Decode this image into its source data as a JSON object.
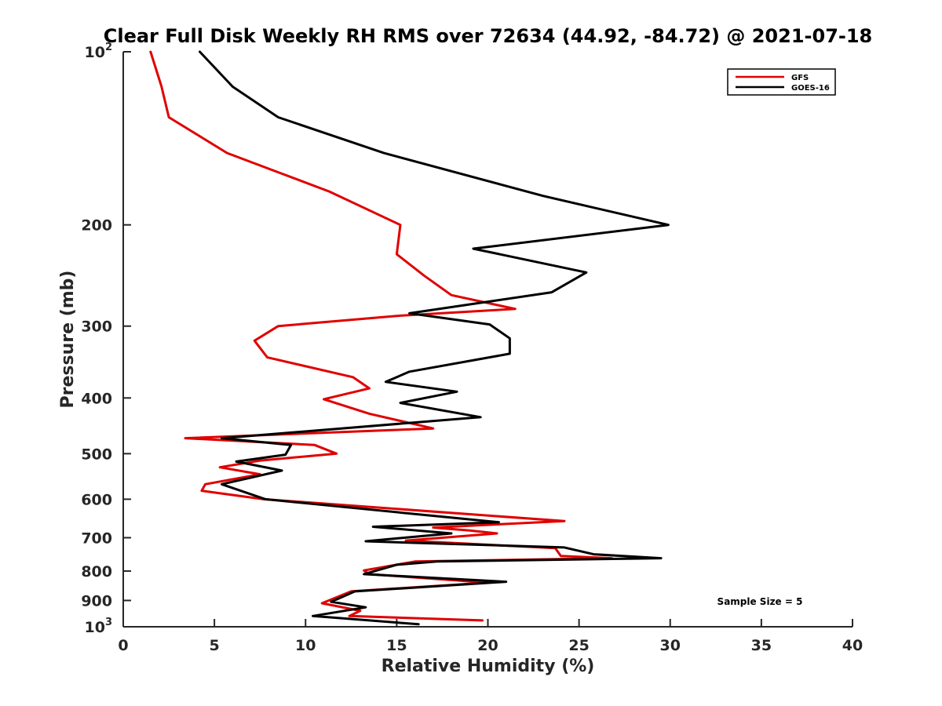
{
  "chart_data": {
    "type": "line",
    "title": "Clear Full Disk Weekly RH RMS over 72634 (44.92, -84.72) @ 2021-07-18",
    "xlabel": "Relative Humidity (%)",
    "ylabel": "Pressure (mb)",
    "xlim": [
      0,
      40
    ],
    "ylim": [
      100,
      1000
    ],
    "yscale": "log",
    "ydir": "reverse",
    "xticks": [
      0,
      5,
      10,
      15,
      20,
      25,
      30,
      35,
      40
    ],
    "xtick_labels": [
      "0",
      "5",
      "10",
      "15",
      "20",
      "25",
      "30",
      "35",
      "40"
    ],
    "yticks": [
      100,
      200,
      300,
      400,
      500,
      600,
      700,
      800,
      900,
      1000
    ],
    "ytick_labels": [
      {
        "base": "10",
        "exp": "2"
      },
      {
        "base": "200",
        "exp": ""
      },
      {
        "base": "300",
        "exp": ""
      },
      {
        "base": "400",
        "exp": ""
      },
      {
        "base": "500",
        "exp": ""
      },
      {
        "base": "600",
        "exp": ""
      },
      {
        "base": "700",
        "exp": ""
      },
      {
        "base": "800",
        "exp": ""
      },
      {
        "base": "900",
        "exp": ""
      },
      {
        "base": "10",
        "exp": "3"
      }
    ],
    "legend_location": "top-right",
    "annotation": "Sample Size = 5",
    "series": [
      {
        "name": "GFS",
        "color": "#e00000",
        "points": [
          [
            1.5,
            100
          ],
          [
            2.1,
            115
          ],
          [
            2.5,
            130
          ],
          [
            5.7,
            150
          ],
          [
            8.5,
            162
          ],
          [
            11.3,
            175
          ],
          [
            15.2,
            200
          ],
          [
            15.0,
            225
          ],
          [
            16.5,
            245
          ],
          [
            18.0,
            265
          ],
          [
            21.5,
            280
          ],
          [
            15.0,
            288
          ],
          [
            8.5,
            300
          ],
          [
            7.2,
            318
          ],
          [
            7.9,
            340
          ],
          [
            12.6,
            368
          ],
          [
            13.5,
            385
          ],
          [
            11.0,
            402
          ],
          [
            13.5,
            426
          ],
          [
            17.0,
            452
          ],
          [
            3.4,
            470
          ],
          [
            10.5,
            483
          ],
          [
            11.7,
            500
          ],
          [
            7.5,
            514
          ],
          [
            5.3,
            528
          ],
          [
            7.5,
            543
          ],
          [
            4.5,
            565
          ],
          [
            4.3,
            580
          ],
          [
            7.7,
            600
          ],
          [
            24.2,
            655
          ],
          [
            17.0,
            672
          ],
          [
            19.0,
            680
          ],
          [
            20.5,
            688
          ],
          [
            15.5,
            708
          ],
          [
            23.7,
            730
          ],
          [
            24.0,
            753
          ],
          [
            26.8,
            760
          ],
          [
            16.0,
            770
          ],
          [
            15.0,
            780
          ],
          [
            13.2,
            798
          ],
          [
            13.5,
            810
          ],
          [
            20.0,
            838
          ],
          [
            12.5,
            868
          ],
          [
            10.9,
            910
          ],
          [
            13.0,
            938
          ],
          [
            12.4,
            958
          ],
          [
            19.7,
            975
          ]
        ]
      },
      {
        "name": "GOES-16",
        "color": "#000000",
        "points": [
          [
            4.2,
            100
          ],
          [
            6.0,
            115
          ],
          [
            8.5,
            130
          ],
          [
            14.3,
            150
          ],
          [
            23.0,
            178
          ],
          [
            29.9,
            200
          ],
          [
            19.2,
            220
          ],
          [
            25.4,
            242
          ],
          [
            23.5,
            262
          ],
          [
            15.7,
            285
          ],
          [
            20.1,
            298
          ],
          [
            21.2,
            315
          ],
          [
            21.2,
            335
          ],
          [
            15.7,
            360
          ],
          [
            14.4,
            375
          ],
          [
            18.3,
            390
          ],
          [
            15.2,
            408
          ],
          [
            19.6,
            432
          ],
          [
            5.4,
            470
          ],
          [
            9.2,
            483
          ],
          [
            8.9,
            502
          ],
          [
            6.2,
            516
          ],
          [
            8.7,
            535
          ],
          [
            5.4,
            565
          ],
          [
            7.8,
            600
          ],
          [
            20.6,
            658
          ],
          [
            13.7,
            670
          ],
          [
            18.0,
            688
          ],
          [
            13.3,
            710
          ],
          [
            24.2,
            728
          ],
          [
            25.8,
            748
          ],
          [
            29.5,
            760
          ],
          [
            17.2,
            770
          ],
          [
            15.0,
            780
          ],
          [
            13.2,
            810
          ],
          [
            21.0,
            835
          ],
          [
            12.7,
            868
          ],
          [
            11.4,
            905
          ],
          [
            13.3,
            925
          ],
          [
            10.4,
            958
          ],
          [
            16.2,
            990
          ]
        ]
      }
    ]
  }
}
